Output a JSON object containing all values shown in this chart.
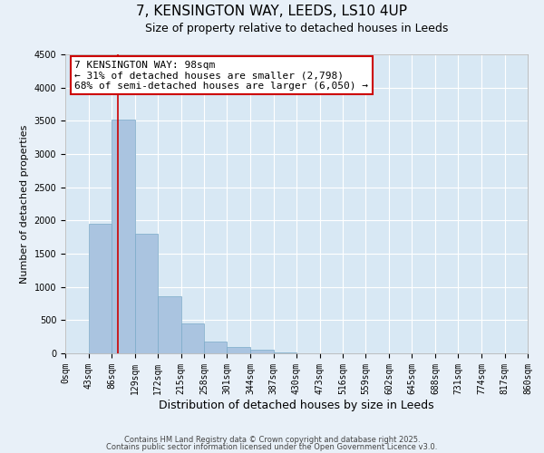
{
  "title": "7, KENSINGTON WAY, LEEDS, LS10 4UP",
  "subtitle": "Size of property relative to detached houses in Leeds",
  "xlabel": "Distribution of detached houses by size in Leeds",
  "ylabel": "Number of detached properties",
  "bar_values": [
    0,
    1950,
    3520,
    1800,
    860,
    450,
    175,
    90,
    50,
    20,
    0,
    0,
    0,
    0,
    0,
    0,
    0,
    0,
    0,
    0
  ],
  "bin_labels": [
    "0sqm",
    "43sqm",
    "86sqm",
    "129sqm",
    "172sqm",
    "215sqm",
    "258sqm",
    "301sqm",
    "344sqm",
    "387sqm",
    "430sqm",
    "473sqm",
    "516sqm",
    "559sqm",
    "602sqm",
    "645sqm",
    "688sqm",
    "731sqm",
    "774sqm",
    "817sqm",
    "860sqm"
  ],
  "bar_color": "#aac4e0",
  "bar_edgecolor": "#7aaac8",
  "bar_linewidth": 0.5,
  "vline_color": "#cc0000",
  "vline_x": 98,
  "ylim": [
    0,
    4500
  ],
  "annotation_line1": "7 KENSINGTON WAY: 98sqm",
  "annotation_line2": "← 31% of detached houses are smaller (2,798)",
  "annotation_line3": "68% of semi-detached houses are larger (6,050) →",
  "annotation_box_color": "#ffffff",
  "annotation_box_edgecolor": "#cc0000",
  "footer1": "Contains HM Land Registry data © Crown copyright and database right 2025.",
  "footer2": "Contains public sector information licensed under the Open Government Licence v3.0.",
  "background_color": "#e8f0f8",
  "plot_background_color": "#d8e8f4",
  "grid_color": "#ffffff",
  "title_fontsize": 11,
  "subtitle_fontsize": 9,
  "tick_fontsize": 7,
  "ylabel_fontsize": 8,
  "xlabel_fontsize": 9,
  "annotation_fontsize": 8,
  "footer_fontsize": 6
}
